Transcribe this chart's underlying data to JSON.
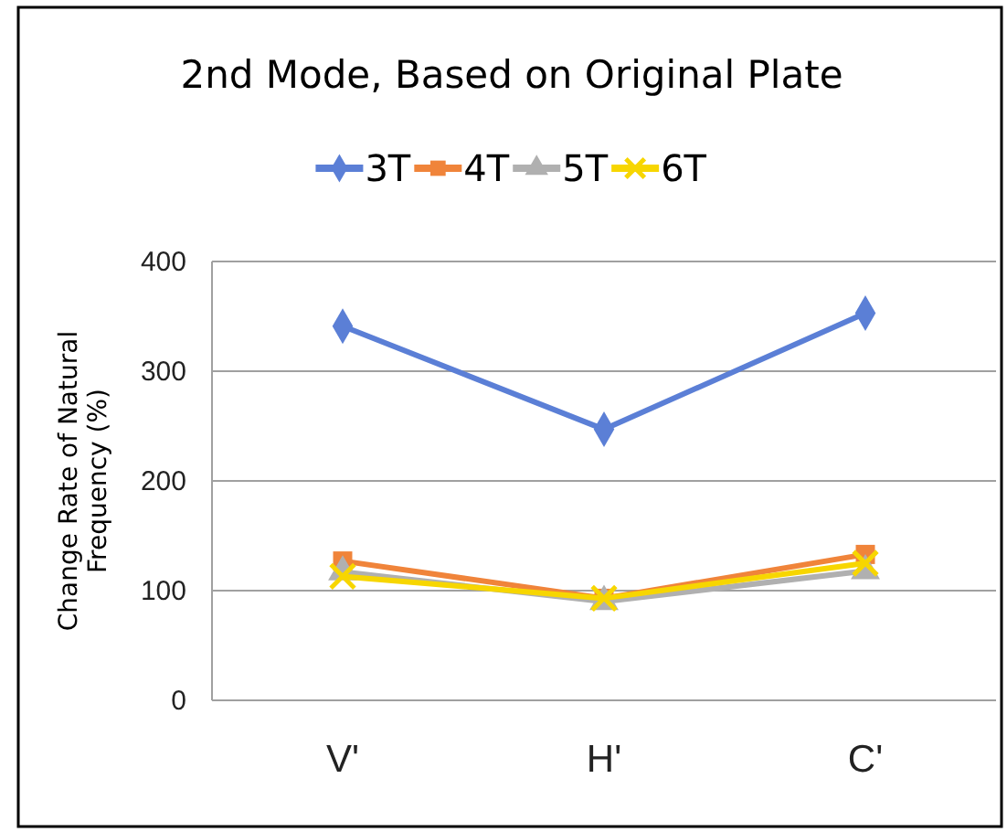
{
  "chart_data": {
    "type": "line",
    "title": "2nd Mode,  Based on Original Plate",
    "ylabel": "Change Rate of Natural Frequency (%)",
    "categories": [
      "V'",
      "H'",
      "C'"
    ],
    "ylim": [
      0,
      400
    ],
    "yticks": [
      0,
      100,
      200,
      300,
      400
    ],
    "grid": "y",
    "legend": "top",
    "line_style": "solid",
    "series": [
      {
        "name": "3T",
        "color": "#5b7fd6",
        "marker": "diamond",
        "values": [
          341,
          247,
          353
        ]
      },
      {
        "name": "4T",
        "color": "#f0843a",
        "marker": "square",
        "values": [
          127,
          93,
          133
        ]
      },
      {
        "name": "5T",
        "color": "#b0b0b0",
        "marker": "triangle",
        "values": [
          117,
          90,
          118
        ]
      },
      {
        "name": "6T",
        "color": "#f7d600",
        "marker": "cross",
        "values": [
          113,
          93,
          125
        ]
      }
    ]
  }
}
